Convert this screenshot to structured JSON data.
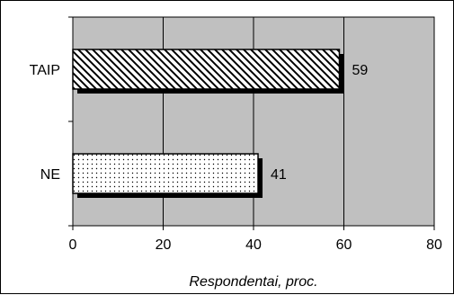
{
  "chart_data": {
    "type": "bar",
    "orientation": "horizontal",
    "categories": [
      "TAIP",
      "NE"
    ],
    "values": [
      59,
      41
    ],
    "data_labels": [
      "59",
      "41"
    ],
    "xlabel": "Respondentai, proc.",
    "xlim": [
      0,
      80
    ],
    "xticks": [
      "0",
      "20",
      "40",
      "60",
      "80"
    ],
    "grid": "vertical",
    "plot_background": "#c0c0c0",
    "bar_fills": [
      "diagonal-hatch",
      "dots"
    ],
    "bar_shadow_color": "#000000"
  }
}
